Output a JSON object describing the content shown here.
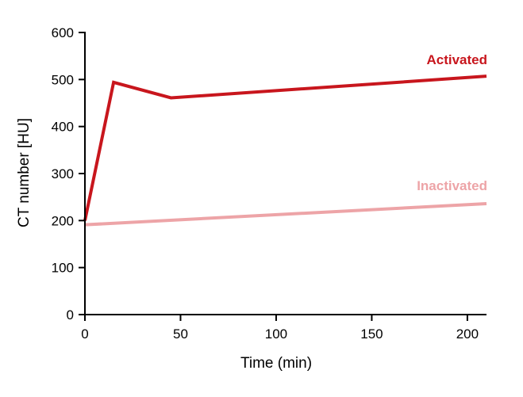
{
  "chart_data": {
    "type": "line",
    "title": "",
    "xlabel": "Time (min)",
    "ylabel": "CT number [HU]",
    "xlim": [
      0,
      210
    ],
    "ylim": [
      0,
      600
    ],
    "xticks": [
      0,
      50,
      100,
      150,
      200
    ],
    "yticks": [
      0,
      100,
      200,
      300,
      400,
      500,
      600
    ],
    "xtick_labels": [
      "0",
      "50",
      "100",
      "150",
      "200"
    ],
    "ytick_labels": [
      "0",
      "100",
      "200",
      "300",
      "400",
      "500",
      "600"
    ],
    "grid": false,
    "legend": "inline labels at right end of each line",
    "series": [
      {
        "name": "Activated",
        "color": "#c8161d",
        "points": [
          [
            0,
            200
          ],
          [
            15,
            494
          ],
          [
            45,
            461
          ],
          [
            210,
            507
          ]
        ]
      },
      {
        "name": "Inactivated",
        "color": "#eda4a7",
        "points": [
          [
            0,
            191
          ],
          [
            210,
            236
          ]
        ]
      }
    ]
  }
}
